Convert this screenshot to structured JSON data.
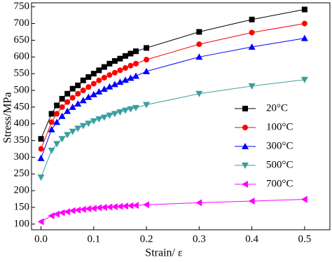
{
  "chart_data": {
    "type": "line",
    "x_label": "Strain/ ε",
    "y_label": "Stress/MPa",
    "x": [
      0,
      0.02,
      0.03,
      0.04,
      0.05,
      0.06,
      0.07,
      0.08,
      0.09,
      0.1,
      0.11,
      0.12,
      0.13,
      0.14,
      0.15,
      0.16,
      0.17,
      0.18,
      0.2,
      0.3,
      0.4,
      0.5
    ],
    "series": [
      {
        "name": "20°C",
        "color": "#000000",
        "marker": "square",
        "values": [
          355,
          430,
          455,
          475,
          490,
          505,
          515,
          530,
          540,
          550,
          560,
          570,
          580,
          588,
          595,
          603,
          610,
          617,
          627,
          675,
          712,
          742
        ]
      },
      {
        "name": "100°C",
        "color": "#ff0000",
        "marker": "circle",
        "values": [
          325,
          405,
          430,
          450,
          465,
          478,
          490,
          500,
          510,
          520,
          530,
          538,
          546,
          553,
          560,
          567,
          574,
          580,
          592,
          638,
          673,
          700
        ]
      },
      {
        "name": "300°C",
        "color": "#0000ff",
        "marker": "triangle-up",
        "values": [
          297,
          383,
          405,
          423,
          438,
          450,
          460,
          470,
          480,
          488,
          496,
          504,
          511,
          518,
          525,
          531,
          537,
          543,
          557,
          600,
          630,
          656
        ]
      },
      {
        "name": "500°C",
        "color": "#3a9e9e",
        "marker": "triangle-down",
        "values": [
          240,
          320,
          340,
          355,
          367,
          377,
          386,
          394,
          401,
          408,
          414,
          419,
          425,
          430,
          435,
          440,
          444,
          448,
          457,
          490,
          513,
          532
        ]
      },
      {
        "name": "700°C",
        "color": "#ff00ff",
        "marker": "triangle-left",
        "values": [
          107,
          125,
          130,
          134,
          137,
          140,
          142,
          144,
          146,
          147,
          149,
          150,
          151,
          152,
          153,
          154,
          155,
          156,
          158,
          164,
          169,
          174
        ]
      }
    ],
    "xlim": [
      -0.018,
      0.548
    ],
    "ylim": [
      83,
      762
    ],
    "xticks": [
      {
        "value": 0,
        "label": "0.0"
      },
      0.1,
      0.2,
      0.3,
      0.4,
      0.5
    ],
    "yticks": [
      100,
      150,
      200,
      250,
      300,
      350,
      400,
      450,
      500,
      550,
      600,
      650,
      700,
      750
    ],
    "legend": "right"
  }
}
